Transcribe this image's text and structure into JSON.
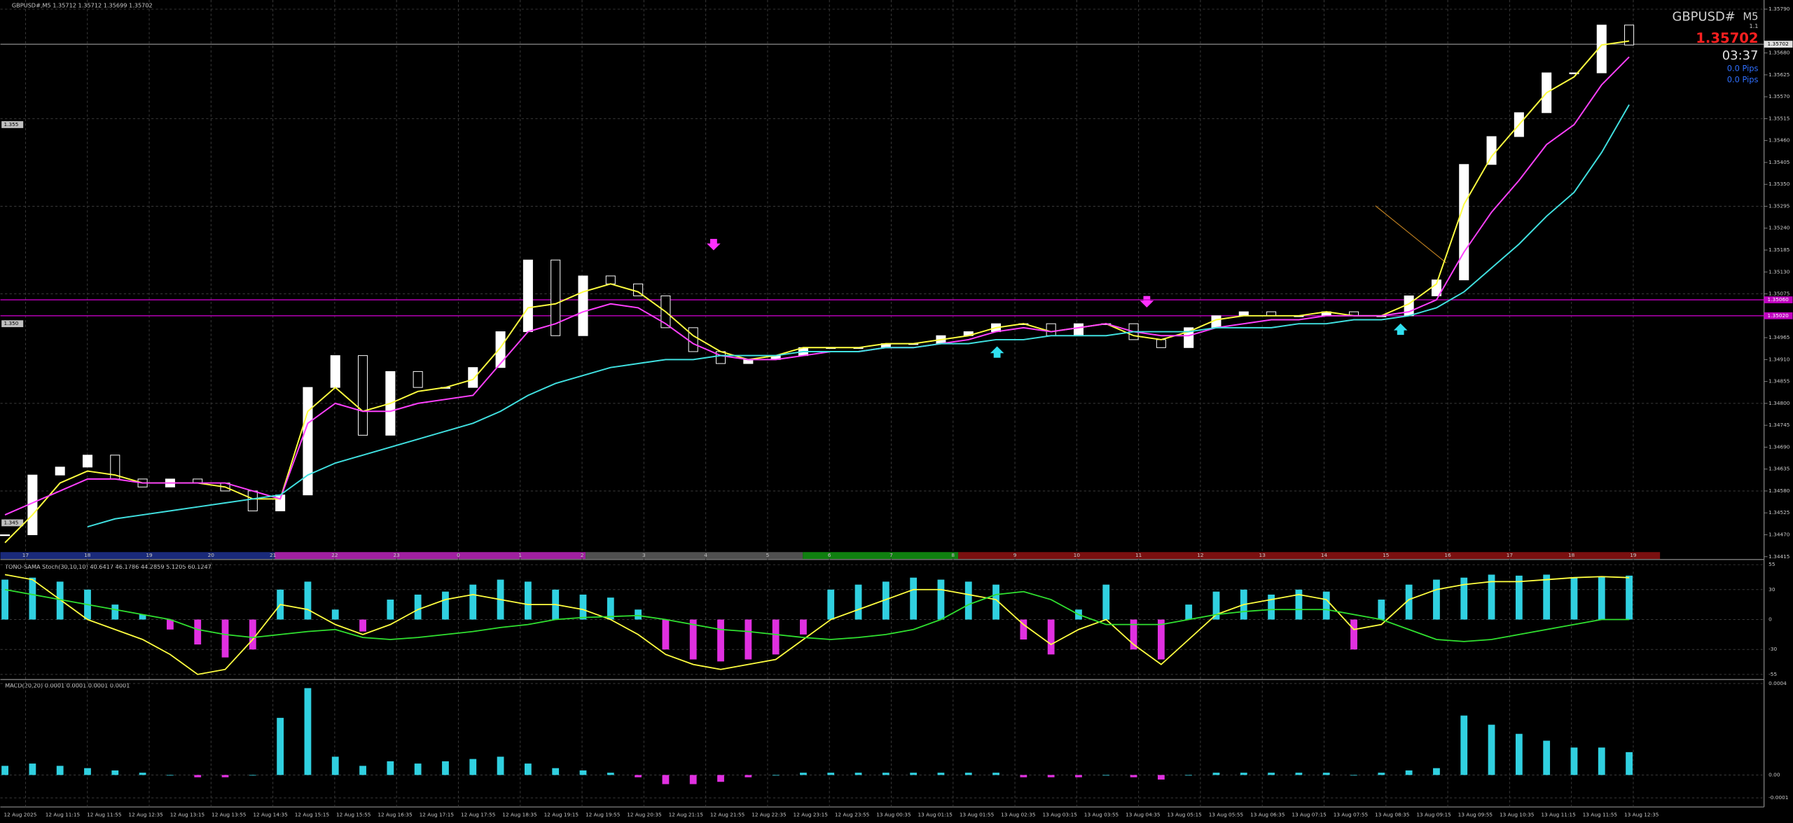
{
  "header": {
    "symbol_info": "GBPUSD#,M5  1.35712 1.35712 1.35699 1.35702",
    "symbol": "GBPUSD#",
    "timeframe": "M5",
    "version": "1.1",
    "price": "1.35702",
    "timer": "03:37",
    "pips_1": "0.0 Pips",
    "pips_2": "0.0 Pips"
  },
  "price_panel": {
    "ylim": [
      1.34415,
      1.3579
    ],
    "yticks": [
      {
        "value": 1.3579,
        "label": "1.35790"
      },
      {
        "value": 1.3568,
        "label": "1.35680"
      },
      {
        "value": 1.35625,
        "label": "1.35625"
      },
      {
        "value": 1.3557,
        "label": "1.35570"
      },
      {
        "value": 1.35515,
        "label": "1.35515"
      },
      {
        "value": 1.3546,
        "label": "1.35460"
      },
      {
        "value": 1.35405,
        "label": "1.35405"
      },
      {
        "value": 1.3535,
        "label": "1.35350"
      },
      {
        "value": 1.35295,
        "label": "1.35295"
      },
      {
        "value": 1.3524,
        "label": "1.35240"
      },
      {
        "value": 1.35185,
        "label": "1.35185"
      },
      {
        "value": 1.3513,
        "label": "1.35130"
      },
      {
        "value": 1.35075,
        "label": "1.35075"
      },
      {
        "value": 1.34965,
        "label": "1.34965"
      },
      {
        "value": 1.3491,
        "label": "1.34910"
      },
      {
        "value": 1.34855,
        "label": "1.34855"
      },
      {
        "value": 1.348,
        "label": "1.34800"
      },
      {
        "value": 1.34745,
        "label": "1.34745"
      },
      {
        "value": 1.3469,
        "label": "1.34690"
      },
      {
        "value": 1.34635,
        "label": "1.34635"
      },
      {
        "value": 1.3458,
        "label": "1.34580"
      },
      {
        "value": 1.34525,
        "label": "1.34525"
      },
      {
        "value": 1.3447,
        "label": "1.34470"
      },
      {
        "value": 1.34415,
        "label": "1.34415"
      }
    ],
    "round_labels": [
      {
        "value": 1.355,
        "label": "1.355"
      },
      {
        "value": 1.35,
        "label": "1.350"
      },
      {
        "value": 1.345,
        "label": "1.345"
      }
    ],
    "current": {
      "value": 1.35702,
      "label": "1.35702"
    },
    "levels": [
      {
        "value": 1.3506,
        "label": "1.35060"
      },
      {
        "value": 1.3502,
        "label": "1.35020"
      }
    ],
    "closes": [
      1.3447,
      1.3462,
      1.3464,
      1.3467,
      1.3461,
      1.3459,
      1.3461,
      1.346,
      1.3458,
      1.3453,
      1.3457,
      1.3484,
      1.3492,
      1.3472,
      1.3488,
      1.3484,
      1.3484,
      1.3489,
      1.3498,
      1.3516,
      1.3497,
      1.3512,
      1.351,
      1.3507,
      1.3499,
      1.3493,
      1.349,
      1.3491,
      1.3492,
      1.3494,
      1.3494,
      1.3494,
      1.3495,
      1.3495,
      1.3497,
      1.3498,
      1.35,
      1.35,
      1.3497,
      1.35,
      1.35,
      1.3496,
      1.3494,
      1.3499,
      1.3502,
      1.3503,
      1.3502,
      1.3502,
      1.3503,
      1.3502,
      1.3502,
      1.3507,
      1.3511,
      1.354,
      1.3547,
      1.3553,
      1.3563,
      1.3563,
      1.3575,
      1.357
    ],
    "ma": [
      {
        "color": "#ffff40",
        "values": [
          1.3445,
          1.3452,
          1.346,
          1.3463,
          1.3462,
          1.346,
          1.346,
          1.346,
          1.3459,
          1.3456,
          1.3456,
          1.3478,
          1.3484,
          1.3478,
          1.348,
          1.3483,
          1.3484,
          1.3486,
          1.3494,
          1.3504,
          1.3505,
          1.3508,
          1.351,
          1.3508,
          1.3503,
          1.3497,
          1.3493,
          1.3491,
          1.3492,
          1.3494,
          1.3494,
          1.3494,
          1.3495,
          1.3495,
          1.3496,
          1.3497,
          1.3499,
          1.35,
          1.3498,
          1.3499,
          1.35,
          1.3497,
          1.3496,
          1.3498,
          1.3501,
          1.3502,
          1.3502,
          1.3502,
          1.3503,
          1.3502,
          1.3502,
          1.3505,
          1.351,
          1.353,
          1.3542,
          1.355,
          1.3558,
          1.3562,
          1.357,
          1.3571
        ]
      },
      {
        "color": "#ff40ff",
        "values": [
          1.3452,
          1.3455,
          1.3458,
          1.3461,
          1.3461,
          1.346,
          1.346,
          1.346,
          1.346,
          1.3458,
          1.3456,
          1.3475,
          1.348,
          1.3478,
          1.3478,
          1.348,
          1.3481,
          1.3482,
          1.349,
          1.3498,
          1.35,
          1.3503,
          1.3505,
          1.3504,
          1.35,
          1.3495,
          1.3492,
          1.3491,
          1.3491,
          1.3492,
          1.3493,
          1.3493,
          1.3494,
          1.3494,
          1.3495,
          1.3496,
          1.3498,
          1.3499,
          1.3498,
          1.3499,
          1.35,
          1.3498,
          1.3497,
          1.3497,
          1.3499,
          1.35,
          1.3501,
          1.3501,
          1.3502,
          1.3502,
          1.3502,
          1.3503,
          1.3506,
          1.3518,
          1.3528,
          1.3536,
          1.3545,
          1.355,
          1.356,
          1.3567
        ]
      },
      {
        "color": "#40e0e0",
        "values": [
          null,
          null,
          null,
          1.3449,
          1.3451,
          1.3452,
          1.3453,
          1.3454,
          1.3455,
          1.3456,
          1.3457,
          1.3462,
          1.3465,
          1.3467,
          1.3469,
          1.3471,
          1.3473,
          1.3475,
          1.3478,
          1.3482,
          1.3485,
          1.3487,
          1.3489,
          1.349,
          1.3491,
          1.3491,
          1.3492,
          1.3492,
          1.3492,
          1.3493,
          1.3493,
          1.3493,
          1.3494,
          1.3494,
          1.3495,
          1.3495,
          1.3496,
          1.3496,
          1.3497,
          1.3497,
          1.3497,
          1.3498,
          1.3498,
          1.3498,
          1.3499,
          1.3499,
          1.3499,
          1.35,
          1.35,
          1.3501,
          1.3501,
          1.3502,
          1.3504,
          1.3508,
          1.3514,
          1.352,
          1.3527,
          1.3533,
          1.3543,
          1.3555
        ]
      }
    ]
  },
  "hour_strip": [
    "17",
    "18",
    "19",
    "20",
    "21",
    "22",
    "23",
    "0",
    "1",
    "2",
    "3",
    "4",
    "5",
    "6",
    "7",
    "8",
    "9",
    "10",
    "11",
    "12",
    "13",
    "14",
    "15",
    "16",
    "17",
    "18",
    "19"
  ],
  "stoch_panel": {
    "title": "TONO-SAMA Stoch(30,10,10) 40.6417 46.1786 44.2859 5.1205 60.1247",
    "ylim": [
      -55,
      55
    ],
    "yticks": [
      55,
      30,
      0,
      -30,
      -55
    ],
    "histogram": [
      40,
      42,
      38,
      30,
      15,
      5,
      -10,
      -25,
      -38,
      -30,
      30,
      38,
      10,
      -12,
      20,
      25,
      28,
      35,
      40,
      38,
      30,
      25,
      22,
      10,
      -30,
      -40,
      -42,
      -40,
      -35,
      -15,
      30,
      35,
      38,
      42,
      40,
      38,
      35,
      -20,
      -35,
      10,
      35,
      -30,
      -40,
      15,
      28,
      30,
      25,
      30,
      28,
      -30,
      20,
      35,
      40,
      42,
      45,
      44,
      45,
      42,
      43,
      44
    ],
    "lines": [
      {
        "color": "#ffff40",
        "values": [
          45,
          40,
          20,
          0,
          -10,
          -20,
          -35,
          -55,
          -50,
          -20,
          15,
          10,
          -5,
          -15,
          -5,
          10,
          20,
          25,
          20,
          15,
          15,
          10,
          0,
          -15,
          -35,
          -45,
          -50,
          -45,
          -40,
          -20,
          0,
          10,
          20,
          30,
          30,
          25,
          20,
          -5,
          -25,
          -10,
          0,
          -25,
          -45,
          -20,
          5,
          15,
          20,
          25,
          20,
          -10,
          -5,
          20,
          30,
          35,
          38,
          38,
          40,
          42,
          43,
          42
        ]
      },
      {
        "color": "#30e030",
        "values": [
          30,
          25,
          20,
          15,
          10,
          5,
          0,
          -10,
          -15,
          -18,
          -15,
          -12,
          -10,
          -18,
          -20,
          -18,
          -15,
          -12,
          -8,
          -5,
          0,
          2,
          3,
          4,
          0,
          -5,
          -10,
          -12,
          -15,
          -18,
          -20,
          -18,
          -15,
          -10,
          0,
          15,
          25,
          28,
          20,
          5,
          -5,
          -5,
          -5,
          0,
          5,
          8,
          10,
          10,
          10,
          5,
          0,
          -10,
          -20,
          -22,
          -20,
          -15,
          -10,
          -5,
          0,
          0
        ]
      }
    ]
  },
  "macd_panel": {
    "title": "MACD(20,20) 0.0001 0.0001 0.0001 0.0001",
    "ylim": [
      -0.000135,
      0.0004
    ],
    "yticks": [
      0.0004,
      {
        "value": 0,
        "label": "0.00"
      },
      -0.0001
    ],
    "histogram": [
      4e-05,
      5e-05,
      4e-05,
      3e-05,
      2e-05,
      1e-05,
      0,
      -1e-05,
      -1e-05,
      0,
      0.00025,
      0.00038,
      8e-05,
      4e-05,
      6e-05,
      5e-05,
      6e-05,
      7e-05,
      8e-05,
      5e-05,
      3e-05,
      2e-05,
      1e-05,
      -1e-05,
      -4e-05,
      -4e-05,
      -3e-05,
      -1e-05,
      0,
      1e-05,
      1e-05,
      1e-05,
      1e-05,
      1e-05,
      1e-05,
      1e-05,
      1e-05,
      -1e-05,
      -1e-05,
      -1e-05,
      0,
      -1e-05,
      -2e-05,
      0,
      1e-05,
      1e-05,
      1e-05,
      1e-05,
      1e-05,
      0,
      1e-05,
      2e-05,
      3e-05,
      0.00026,
      0.00022,
      0.00018,
      0.00015,
      0.00012,
      0.00012,
      0.0001
    ]
  },
  "time_axis": [
    "12 Aug 2025",
    "12 Aug 11:15",
    "12 Aug 11:55",
    "12 Aug 12:35",
    "12 Aug 13:15",
    "12 Aug 13:55",
    "12 Aug 14:35",
    "12 Aug 15:15",
    "12 Aug 15:55",
    "12 Aug 16:35",
    "12 Aug 17:15",
    "12 Aug 17:55",
    "12 Aug 18:35",
    "12 Aug 19:15",
    "12 Aug 19:55",
    "12 Aug 20:35",
    "12 Aug 21:15",
    "12 Aug 21:55",
    "12 Aug 22:35",
    "12 Aug 23:15",
    "12 Aug 23:55",
    "13 Aug 00:35",
    "13 Aug 01:15",
    "13 Aug 01:55",
    "13 Aug 02:35",
    "13 Aug 03:15",
    "13 Aug 03:55",
    "13 Aug 04:35",
    "13 Aug 05:15",
    "13 Aug 05:55",
    "13 Aug 06:35",
    "13 Aug 07:15",
    "13 Aug 07:55",
    "13 Aug 08:35",
    "13 Aug 09:15",
    "13 Aug 09:55",
    "13 Aug 10:35",
    "13 Aug 11:15",
    "13 Aug 11:55",
    "13 Aug 12:35"
  ]
}
